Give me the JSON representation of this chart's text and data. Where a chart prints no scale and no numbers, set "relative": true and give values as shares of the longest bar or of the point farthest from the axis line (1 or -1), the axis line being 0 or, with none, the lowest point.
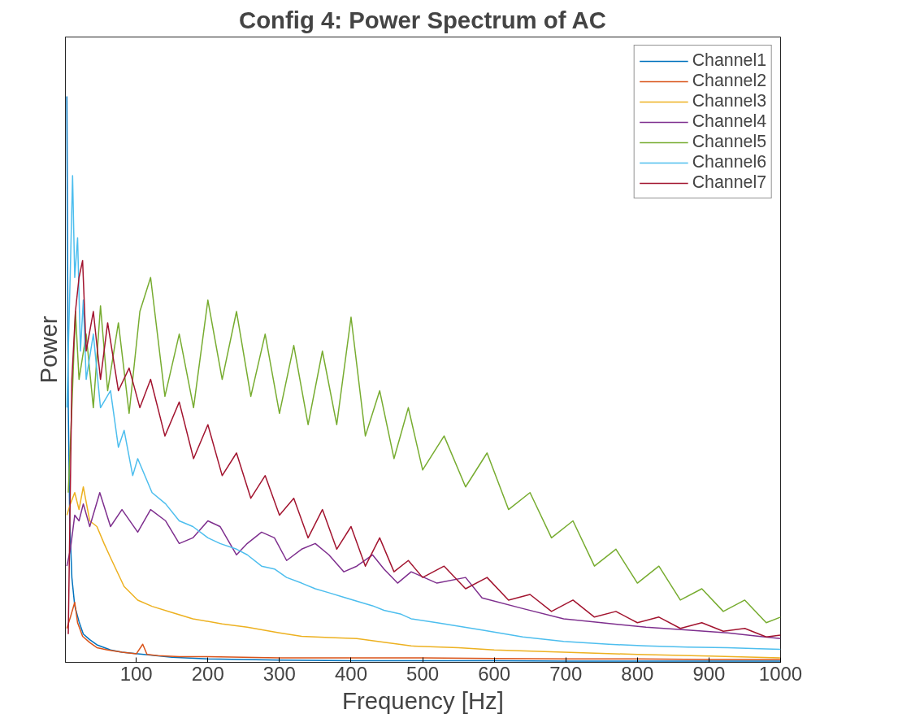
{
  "chart_data": {
    "type": "line",
    "title": "Config 4: Power Spectrum of AC",
    "xlabel": "Frequency [Hz]",
    "ylabel": "Power",
    "relative": true,
    "xlim": [
      1,
      1000
    ],
    "xticks": [
      100,
      200,
      300,
      400,
      500,
      600,
      700,
      800,
      900,
      1000
    ],
    "grid": false,
    "legend": "top right",
    "line_style": "solid",
    "series": [
      {
        "name": "Channel1",
        "color": "#0072bd",
        "x": [
          3,
          5,
          7,
          10,
          14,
          20,
          26,
          35,
          45,
          64,
          80,
          102,
          150,
          200,
          300,
          400,
          500,
          600,
          700,
          800,
          900,
          1000
        ],
        "values": [
          1.0,
          0.45,
          0.25,
          0.15,
          0.1,
          0.072,
          0.05,
          0.04,
          0.031,
          0.022,
          0.018,
          0.015,
          0.009,
          0.006,
          0.004,
          0.003,
          0.003,
          0.003,
          0.002,
          0.002,
          0.002,
          0.002
        ]
      },
      {
        "name": "Channel2",
        "color": "#d95319",
        "x": [
          3,
          8,
          14,
          18,
          25,
          35,
          45,
          60,
          80,
          100,
          109,
          115,
          130,
          160,
          200,
          250,
          300,
          400,
          500,
          600,
          700,
          800,
          900,
          1000
        ],
        "values": [
          0.06,
          0.08,
          0.106,
          0.07,
          0.046,
          0.035,
          0.026,
          0.022,
          0.018,
          0.015,
          0.032,
          0.014,
          0.012,
          0.01,
          0.01,
          0.009,
          0.008,
          0.008,
          0.008,
          0.007,
          0.006,
          0.006,
          0.005,
          0.005
        ]
      },
      {
        "name": "Channel3",
        "color": "#edb120",
        "x": [
          3,
          8,
          14,
          20,
          26,
          35,
          45,
          55,
          64,
          83,
          102,
          122,
          150,
          179,
          220,
          255,
          300,
          331,
          370,
          408,
          450,
          484,
          550,
          600,
          697,
          800,
          900,
          1000
        ],
        "values": [
          0.26,
          0.28,
          0.3,
          0.27,
          0.31,
          0.25,
          0.24,
          0.21,
          0.185,
          0.134,
          0.11,
          0.099,
          0.088,
          0.077,
          0.068,
          0.062,
          0.052,
          0.046,
          0.044,
          0.042,
          0.035,
          0.029,
          0.026,
          0.022,
          0.018,
          0.014,
          0.011,
          0.008
        ]
      },
      {
        "name": "Channel4",
        "color": "#7e2f8e",
        "x": [
          3,
          8,
          14,
          20,
          26,
          35,
          49,
          64,
          80,
          102,
          120,
          141,
          160,
          179,
          200,
          217,
          240,
          255,
          275,
          293,
          310,
          331,
          350,
          369,
          390,
          408,
          430,
          446,
          465,
          484,
          520,
          560,
          583,
          640,
          697,
          750,
          812,
          870,
          926,
          970,
          1000
        ],
        "values": [
          0.17,
          0.2,
          0.26,
          0.25,
          0.28,
          0.24,
          0.3,
          0.24,
          0.27,
          0.23,
          0.27,
          0.25,
          0.21,
          0.22,
          0.25,
          0.24,
          0.19,
          0.21,
          0.23,
          0.22,
          0.18,
          0.2,
          0.21,
          0.19,
          0.16,
          0.17,
          0.19,
          0.165,
          0.14,
          0.16,
          0.14,
          0.15,
          0.114,
          0.095,
          0.077,
          0.07,
          0.062,
          0.057,
          0.052,
          0.046,
          0.042
        ]
      },
      {
        "name": "Channel5",
        "color": "#77ac30",
        "x": [
          5,
          10,
          15,
          20,
          30,
          40,
          50,
          60,
          75,
          90,
          105,
          120,
          140,
          160,
          180,
          200,
          220,
          240,
          260,
          280,
          300,
          320,
          340,
          360,
          380,
          400,
          420,
          440,
          460,
          480,
          500,
          530,
          560,
          590,
          620,
          650,
          680,
          710,
          740,
          770,
          800,
          830,
          860,
          890,
          920,
          950,
          980,
          1000
        ],
        "values": [
          0.3,
          0.45,
          0.62,
          0.5,
          0.58,
          0.45,
          0.63,
          0.48,
          0.6,
          0.44,
          0.62,
          0.68,
          0.47,
          0.58,
          0.45,
          0.64,
          0.5,
          0.62,
          0.47,
          0.58,
          0.44,
          0.56,
          0.42,
          0.55,
          0.42,
          0.61,
          0.4,
          0.48,
          0.36,
          0.45,
          0.34,
          0.4,
          0.31,
          0.37,
          0.27,
          0.3,
          0.22,
          0.25,
          0.17,
          0.2,
          0.14,
          0.17,
          0.11,
          0.13,
          0.09,
          0.11,
          0.07,
          0.08
        ]
      },
      {
        "name": "Channel6",
        "color": "#4dbeee",
        "x": [
          3,
          8,
          11,
          14,
          18,
          22,
          26,
          30,
          40,
          50,
          64,
          75,
          83,
          95,
          102,
          122,
          141,
          160,
          179,
          200,
          217,
          240,
          255,
          275,
          293,
          310,
          331,
          350,
          369,
          390,
          408,
          430,
          446,
          470,
          484,
          520,
          583,
          640,
          697,
          760,
          812,
          870,
          926,
          970,
          1000
        ],
        "values": [
          0.45,
          0.7,
          0.86,
          0.68,
          0.75,
          0.55,
          0.64,
          0.5,
          0.58,
          0.45,
          0.48,
          0.38,
          0.41,
          0.33,
          0.36,
          0.3,
          0.28,
          0.25,
          0.24,
          0.22,
          0.21,
          0.2,
          0.19,
          0.17,
          0.165,
          0.15,
          0.14,
          0.13,
          0.123,
          0.115,
          0.108,
          0.1,
          0.092,
          0.085,
          0.077,
          0.07,
          0.057,
          0.045,
          0.037,
          0.032,
          0.029,
          0.027,
          0.026,
          0.024,
          0.023
        ]
      },
      {
        "name": "Channel7",
        "color": "#a2142f",
        "x": [
          5,
          10,
          15,
          20,
          25,
          30,
          40,
          50,
          60,
          75,
          90,
          105,
          120,
          140,
          160,
          180,
          200,
          220,
          240,
          260,
          280,
          300,
          320,
          340,
          360,
          380,
          400,
          420,
          440,
          460,
          480,
          500,
          530,
          560,
          590,
          620,
          650,
          680,
          710,
          740,
          770,
          800,
          830,
          860,
          890,
          920,
          950,
          980,
          1000
        ],
        "values": [
          0.05,
          0.5,
          0.62,
          0.68,
          0.71,
          0.55,
          0.62,
          0.5,
          0.6,
          0.48,
          0.52,
          0.45,
          0.5,
          0.4,
          0.46,
          0.36,
          0.42,
          0.33,
          0.37,
          0.29,
          0.33,
          0.26,
          0.29,
          0.22,
          0.27,
          0.2,
          0.24,
          0.17,
          0.22,
          0.16,
          0.18,
          0.15,
          0.17,
          0.13,
          0.15,
          0.11,
          0.12,
          0.09,
          0.11,
          0.08,
          0.09,
          0.07,
          0.08,
          0.06,
          0.07,
          0.055,
          0.06,
          0.045,
          0.048
        ]
      }
    ]
  }
}
